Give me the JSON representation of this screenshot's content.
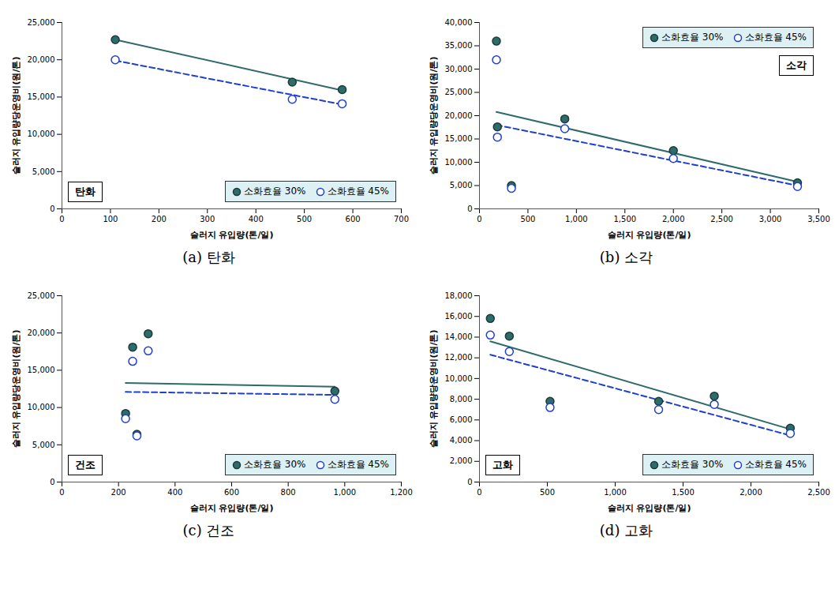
{
  "chart_data": [
    {
      "type": "scatter",
      "title": "탄화",
      "caption": "(a) 탄화",
      "x_label": "슬러지 유입량(톤/일)",
      "y_label": "슬러지 유입량당운영비(원/톤)",
      "x": [
        110,
        475,
        578
      ],
      "series": [
        {
          "name": "소화효율 30%",
          "color": "#2e6b6b",
          "marker": "filled",
          "line_style": "solid",
          "values": [
            22700,
            17000,
            16000
          ],
          "trend": {
            "x": [
              110,
              578
            ],
            "values": [
              22700,
              15900
            ]
          }
        },
        {
          "name": "소화효율 45%",
          "color": "#1f3fd0",
          "marker": "open",
          "line_style": "dashed",
          "values": [
            20000,
            14700,
            14100
          ],
          "trend": {
            "x": [
              110,
              578
            ],
            "values": [
              19900,
              14000
            ]
          }
        }
      ],
      "xlim": [
        0,
        700
      ],
      "xticks": [
        0,
        100,
        200,
        300,
        400,
        500,
        600,
        700
      ],
      "ylim": [
        0,
        25000
      ],
      "yticks": [
        0,
        {
          "value": 5000,
          "label": "5,000"
        },
        {
          "value": 10000,
          "label": "10,000"
        },
        {
          "value": 15000,
          "label": "15,000"
        },
        {
          "value": 20000,
          "label": "20,000"
        },
        {
          "value": 25000,
          "label": "25,000"
        }
      ],
      "grid": false,
      "legend": "bottom right"
    },
    {
      "type": "scatter",
      "title": "소각",
      "caption": "(b) 소각",
      "x_label": "슬러지 유입량(톤/일)",
      "y_label": "슬러지 유입량당운영비(원/톤)",
      "x": [
        175,
        185,
        330,
        880,
        2000,
        3280
      ],
      "series": [
        {
          "name": "소화효율 30%",
          "color": "#2e6b6b",
          "marker": "filled",
          "line_style": "solid",
          "values": [
            36000,
            17600,
            5000,
            19300,
            12500,
            5600
          ],
          "trend": {
            "x": [
              175,
              3280
            ],
            "values": [
              20800,
              5800
            ]
          }
        },
        {
          "name": "소화효율 45%",
          "color": "#1f3fd0",
          "marker": "open",
          "line_style": "dashed",
          "values": [
            32000,
            15400,
            4400,
            17200,
            10800,
            4800
          ],
          "trend": {
            "x": [
              175,
              3280
            ],
            "values": [
              18000,
              5000
            ]
          }
        }
      ],
      "xlim": [
        0,
        3500
      ],
      "xticks": [
        0,
        500,
        {
          "value": 1000,
          "label": "1,000"
        },
        {
          "value": 1500,
          "label": "1,500"
        },
        {
          "value": 2000,
          "label": "2,000"
        },
        {
          "value": 2500,
          "label": "2,500"
        },
        {
          "value": 3000,
          "label": "3,000"
        },
        {
          "value": 3500,
          "label": "3,500"
        }
      ],
      "ylim": [
        0,
        40000
      ],
      "yticks": [
        0,
        {
          "value": 5000,
          "label": "5,000"
        },
        {
          "value": 10000,
          "label": "10,000"
        },
        {
          "value": 15000,
          "label": "15,000"
        },
        {
          "value": 20000,
          "label": "20,000"
        },
        {
          "value": 25000,
          "label": "25,000"
        },
        {
          "value": 30000,
          "label": "30,000"
        },
        {
          "value": 35000,
          "label": "35,000"
        },
        {
          "value": 40000,
          "label": "40,000"
        }
      ],
      "grid": false,
      "legend": "top right"
    },
    {
      "type": "scatter",
      "title": "건조",
      "caption": "(c) 건조",
      "x_label": "슬러지 유입량(톤/일)",
      "y_label": "슬러지 유입량당운영비(원/톤)",
      "x": [
        225,
        250,
        265,
        305,
        965
      ],
      "series": [
        {
          "name": "소화효율 30%",
          "color": "#2e6b6b",
          "marker": "filled",
          "line_style": "solid",
          "values": [
            9200,
            18100,
            6400,
            19900,
            12200
          ],
          "trend": {
            "x": [
              225,
              965
            ],
            "values": [
              13300,
              12800
            ]
          }
        },
        {
          "name": "소화효율 45%",
          "color": "#1f3fd0",
          "marker": "open",
          "line_style": "dashed",
          "values": [
            8500,
            16200,
            6200,
            17600,
            11100
          ],
          "trend": {
            "x": [
              225,
              965
            ],
            "values": [
              12100,
              11700
            ]
          }
        }
      ],
      "xlim": [
        0,
        1200
      ],
      "xticks": [
        0,
        200,
        400,
        600,
        800,
        {
          "value": 1000,
          "label": "1,000"
        },
        {
          "value": 1200,
          "label": "1,200"
        }
      ],
      "ylim": [
        0,
        25000
      ],
      "yticks": [
        0,
        {
          "value": 5000,
          "label": "5,000"
        },
        {
          "value": 10000,
          "label": "10,000"
        },
        {
          "value": 15000,
          "label": "15,000"
        },
        {
          "value": 20000,
          "label": "20,000"
        },
        {
          "value": 25000,
          "label": "25,000"
        }
      ],
      "grid": false,
      "legend": "bottom right"
    },
    {
      "type": "scatter",
      "title": "고화",
      "caption": "(d) 고화",
      "x_label": "슬러지 유입량(톤/일)",
      "y_label": "슬러지 유입량당운영비(원/톤)",
      "x": [
        80,
        220,
        520,
        1320,
        1730,
        2290
      ],
      "series": [
        {
          "name": "소화효율 30%",
          "color": "#2e6b6b",
          "marker": "filled",
          "line_style": "solid",
          "values": [
            15800,
            14100,
            7800,
            7800,
            8300,
            5200
          ],
          "trend": {
            "x": [
              80,
              2290
            ],
            "values": [
              13600,
              5100
            ]
          }
        },
        {
          "name": "소화효율 45%",
          "color": "#1f3fd0",
          "marker": "open",
          "line_style": "dashed",
          "values": [
            14200,
            12600,
            7200,
            7000,
            7500,
            4700
          ],
          "trend": {
            "x": [
              80,
              2290
            ],
            "values": [
              12300,
              4500
            ]
          }
        }
      ],
      "xlim": [
        0,
        2500
      ],
      "xticks": [
        0,
        500,
        {
          "value": 1000,
          "label": "1,000"
        },
        {
          "value": 1500,
          "label": "1,500"
        },
        {
          "value": 2000,
          "label": "2,000"
        },
        {
          "value": 2500,
          "label": "2,500"
        }
      ],
      "ylim": [
        0,
        18000
      ],
      "yticks": [
        0,
        {
          "value": 2000,
          "label": "2,000"
        },
        {
          "value": 4000,
          "label": "4,000"
        },
        {
          "value": 6000,
          "label": "6,000"
        },
        {
          "value": 8000,
          "label": "8,000"
        },
        {
          "value": 10000,
          "label": "10,000"
        },
        {
          "value": 12000,
          "label": "12,000"
        },
        {
          "value": 14000,
          "label": "14,000"
        },
        {
          "value": 16000,
          "label": "16,000"
        },
        {
          "value": 18000,
          "label": "18,000"
        }
      ],
      "grid": false,
      "legend": "bottom right"
    }
  ]
}
